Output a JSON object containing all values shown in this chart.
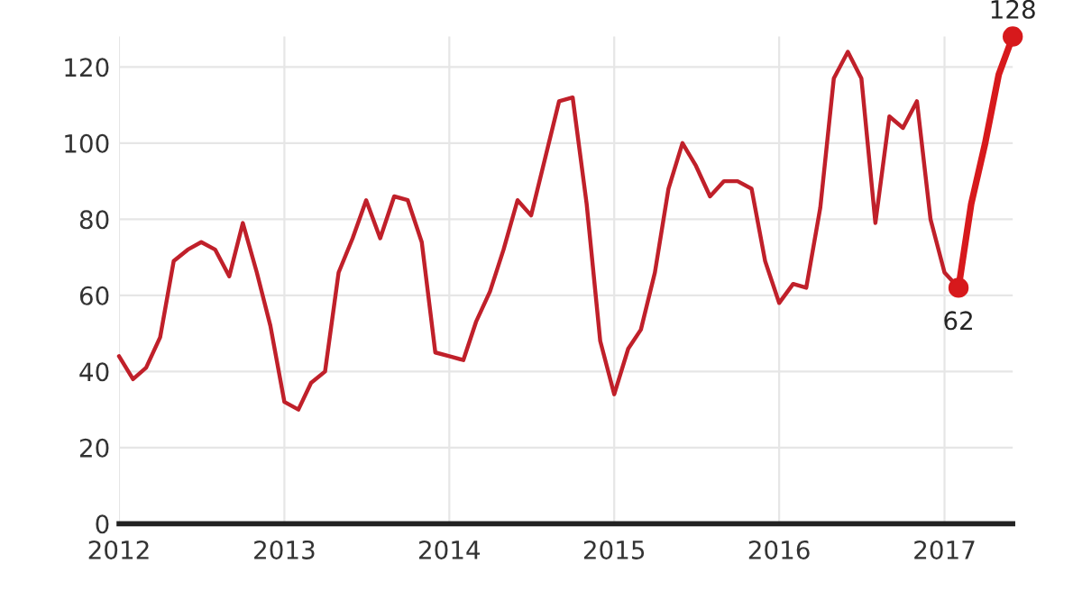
{
  "chart_data": {
    "type": "line",
    "x": [
      "2012-01",
      "2012-02",
      "2012-03",
      "2012-04",
      "2012-05",
      "2012-06",
      "2012-07",
      "2012-08",
      "2012-09",
      "2012-10",
      "2012-11",
      "2012-12",
      "2013-01",
      "2013-02",
      "2013-03",
      "2013-04",
      "2013-05",
      "2013-06",
      "2013-07",
      "2013-08",
      "2013-09",
      "2013-10",
      "2013-11",
      "2013-12",
      "2014-01",
      "2014-02",
      "2014-03",
      "2014-04",
      "2014-05",
      "2014-06",
      "2014-07",
      "2014-08",
      "2014-09",
      "2014-10",
      "2014-11",
      "2014-12",
      "2015-01",
      "2015-02",
      "2015-03",
      "2015-04",
      "2015-05",
      "2015-06",
      "2015-07",
      "2015-08",
      "2015-09",
      "2015-10",
      "2015-11",
      "2015-12",
      "2016-01",
      "2016-02",
      "2016-03",
      "2016-04",
      "2016-05",
      "2016-06",
      "2016-07",
      "2016-08",
      "2016-09",
      "2016-10",
      "2016-11",
      "2016-12",
      "2017-01",
      "2017-02"
    ],
    "series": [
      {
        "color": "#c0202a",
        "values": [
          44,
          38,
          41,
          49,
          69,
          72,
          74,
          72,
          65,
          79,
          66,
          52,
          32,
          30,
          37,
          40,
          66,
          75,
          85,
          75,
          86,
          85,
          74,
          45,
          44,
          43,
          53,
          61,
          72,
          85,
          81,
          96,
          111,
          112,
          84,
          48,
          34,
          46,
          51,
          66,
          88,
          100,
          94,
          86,
          90,
          90,
          88,
          69,
          58,
          63,
          62,
          83,
          117,
          124,
          117,
          79,
          107,
          104,
          111,
          80,
          66,
          62
        ]
      },
      {
        "color": "#d7191c",
        "x": [
          "2017-02",
          "2017-03",
          "2017-04",
          "2017-05",
          "2017-06"
        ],
        "values": [
          62,
          84,
          100,
          118,
          128
        ]
      },
      {
        "type": "scatter",
        "color": "#d7191c",
        "x": [
          "2017-02",
          "2017-06"
        ],
        "values": [
          62,
          128
        ],
        "value_labels": [
          "62",
          "128"
        ],
        "marker": "circle"
      }
    ],
    "xlim": [
      "2012-01",
      "2017-06"
    ],
    "ylim": [
      0,
      128
    ],
    "xticks": [
      {
        "value": "2012",
        "label": "2012"
      },
      {
        "value": "2013",
        "label": "2013"
      },
      {
        "value": "2014",
        "label": "2014"
      },
      {
        "value": "2015",
        "label": "2015"
      },
      {
        "value": "2016",
        "label": "2016"
      },
      {
        "value": "2017",
        "label": "2017"
      }
    ],
    "yticks": [
      0,
      20,
      40,
      60,
      80,
      100,
      120
    ],
    "grid": true,
    "line_style": "solid"
  }
}
